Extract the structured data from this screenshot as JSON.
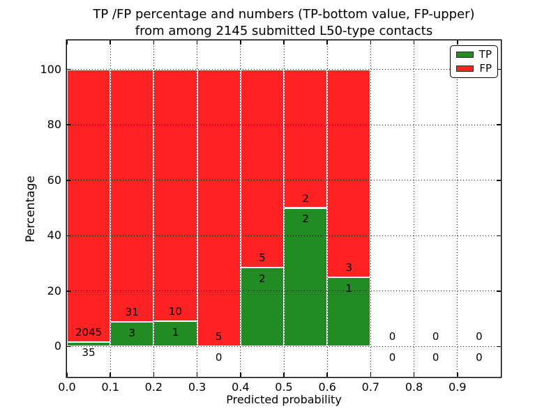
{
  "title": {
    "line1": "TP /FP percentage and numbers (TP-bottom value, FP-upper)",
    "line2": "from among 2145 submitted L50-type contacts"
  },
  "chart_data": {
    "type": "bar",
    "stacked": true,
    "total_submitted_contacts": 2145,
    "xlabel": "Predicted probability",
    "ylabel": "Percentage",
    "xlim": [
      0.0,
      1.0
    ],
    "ylim": [
      -11,
      110.5
    ],
    "xticks": [
      "0.0",
      "0.1",
      "0.2",
      "0.3",
      "0.4",
      "0.5",
      "0.6",
      "0.7",
      "0.8",
      "0.9"
    ],
    "yticks": [
      0,
      20,
      40,
      60,
      80,
      100
    ],
    "grid": {
      "style": "dotted",
      "color": "#000000",
      "above_bars": true
    },
    "bar_edge_color": "#ffffff",
    "colors": {
      "tp": "#228b22",
      "fp": "#ff2222"
    },
    "bins": [
      {
        "range": [
          0.0,
          0.1
        ],
        "tp": 35,
        "fp": 2045,
        "tp_pct": 1.68,
        "fp_pct": 98.32
      },
      {
        "range": [
          0.1,
          0.2
        ],
        "tp": 3,
        "fp": 31,
        "tp_pct": 8.82,
        "fp_pct": 91.18
      },
      {
        "range": [
          0.2,
          0.3
        ],
        "tp": 1,
        "fp": 10,
        "tp_pct": 9.09,
        "fp_pct": 90.91
      },
      {
        "range": [
          0.3,
          0.4
        ],
        "tp": 0,
        "fp": 5,
        "tp_pct": 0.0,
        "fp_pct": 100.0
      },
      {
        "range": [
          0.4,
          0.5
        ],
        "tp": 2,
        "fp": 5,
        "tp_pct": 28.57,
        "fp_pct": 71.43
      },
      {
        "range": [
          0.5,
          0.6
        ],
        "tp": 2,
        "fp": 2,
        "tp_pct": 50.0,
        "fp_pct": 50.0
      },
      {
        "range": [
          0.6,
          0.7
        ],
        "tp": 1,
        "fp": 3,
        "tp_pct": 25.0,
        "fp_pct": 75.0
      },
      {
        "range": [
          0.7,
          0.8
        ],
        "tp": 0,
        "fp": 0,
        "tp_pct": null,
        "fp_pct": null
      },
      {
        "range": [
          0.8,
          0.9
        ],
        "tp": 0,
        "fp": 0,
        "tp_pct": null,
        "fp_pct": null
      },
      {
        "range": [
          0.9,
          1.0
        ],
        "tp": 0,
        "fp": 0,
        "tp_pct": null,
        "fp_pct": null
      }
    ],
    "series": [
      {
        "name": "TP",
        "color": "#228b22",
        "counts": [
          35,
          3,
          1,
          0,
          2,
          2,
          1,
          0,
          0,
          0
        ]
      },
      {
        "name": "FP",
        "color": "#ff2222",
        "counts": [
          2045,
          31,
          10,
          5,
          5,
          2,
          3,
          0,
          0,
          0
        ]
      }
    ],
    "legend": {
      "position": "upper right",
      "entries": [
        {
          "label": "TP",
          "color": "#228b22"
        },
        {
          "label": "FP",
          "color": "#ff2222"
        }
      ]
    }
  }
}
